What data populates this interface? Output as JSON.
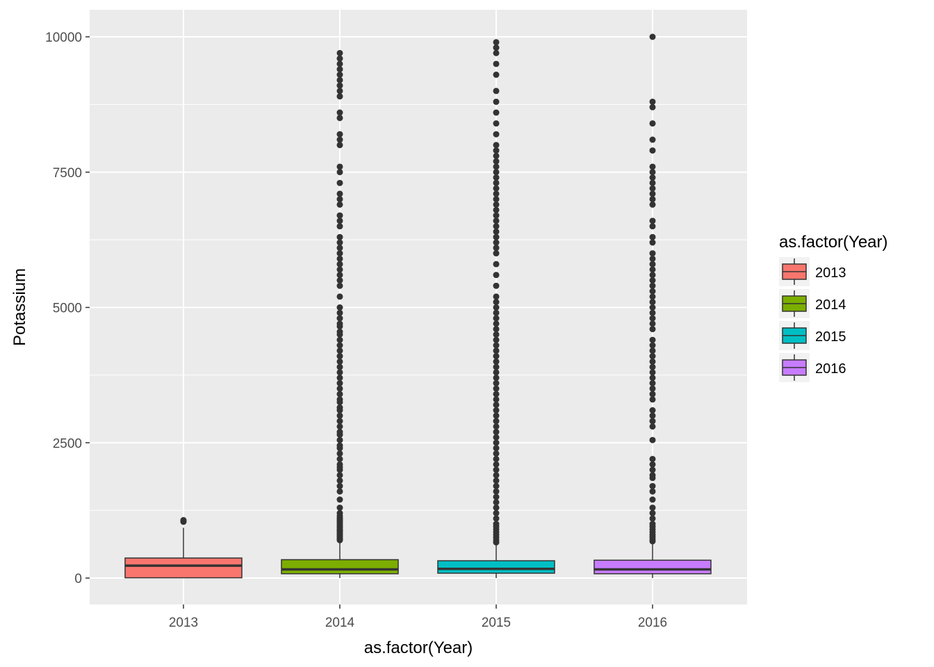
{
  "chart_data": {
    "type": "box",
    "xlabel": "as.factor(Year)",
    "ylabel": "Potassium",
    "categories": [
      "2013",
      "2014",
      "2015",
      "2016"
    ],
    "y_ticks": [
      0,
      2500,
      5000,
      7500,
      10000
    ],
    "y_tick_labels": [
      "0",
      "2500",
      "5000",
      "7500",
      "10000"
    ],
    "ylim": [
      -520,
      10520
    ],
    "grid": true,
    "legend": {
      "title": "as.factor(Year)",
      "placement": "right",
      "entries": [
        "2013",
        "2014",
        "2015",
        "2016"
      ]
    },
    "colors": {
      "2013": "#F8766D",
      "2014": "#7CAE00",
      "2015": "#00BFC4",
      "2016": "#C77CFF",
      "panel": "#EBEBEB",
      "grid": "#FFFFFF",
      "outline": "#333333"
    },
    "series": [
      {
        "category": "2013",
        "min": 0,
        "q1": 5,
        "median": 230,
        "q3": 370,
        "max": 930,
        "outliers": [
          1040,
          1050,
          1060,
          1070
        ]
      },
      {
        "category": "2014",
        "min": 0,
        "q1": 80,
        "median": 160,
        "q3": 340,
        "max": 690,
        "outliers": [
          700,
          720,
          740,
          770,
          800,
          830,
          860,
          880,
          900,
          930,
          960,
          990,
          1020,
          1050,
          1080,
          1110,
          1150,
          1200,
          1300,
          1450,
          1600,
          1700,
          1800,
          1900,
          2000,
          2050,
          2100,
          2200,
          2300,
          2400,
          2450,
          2550,
          2650,
          2700,
          2800,
          2900,
          3000,
          3100,
          3150,
          3250,
          3300,
          3400,
          3500,
          3600,
          3700,
          3800,
          3900,
          4000,
          4100,
          4200,
          4300,
          4400,
          4500,
          4550,
          4650,
          4700,
          4800,
          4900,
          5000,
          5200,
          5400,
          5500,
          5600,
          5700,
          5800,
          5900,
          6000,
          6100,
          6200,
          6300,
          6500,
          6600,
          6700,
          6900,
          7000,
          7100,
          7300,
          7500,
          7600,
          8000,
          8100,
          8200,
          8500,
          8600,
          8900,
          9000,
          9100,
          9200,
          9300,
          9400,
          9500,
          9600,
          9700
        ]
      },
      {
        "category": "2015",
        "min": 0,
        "q1": 90,
        "median": 170,
        "q3": 320,
        "max": 650,
        "outliers": [
          660,
          700,
          750,
          800,
          850,
          900,
          950,
          1000,
          1100,
          1200,
          1300,
          1400,
          1500,
          1600,
          1700,
          1800,
          1900,
          2000,
          2100,
          2200,
          2300,
          2400,
          2500,
          2600,
          2700,
          2800,
          2900,
          3000,
          3100,
          3200,
          3300,
          3400,
          3500,
          3600,
          3700,
          3800,
          3900,
          4000,
          4100,
          4200,
          4300,
          4400,
          4500,
          4600,
          4700,
          4800,
          4900,
          5000,
          5100,
          5200,
          5400,
          5600,
          5800,
          6000,
          6100,
          6200,
          6300,
          6400,
          6500,
          6600,
          6700,
          6800,
          6900,
          7000,
          7100,
          7200,
          7300,
          7400,
          7500,
          7600,
          7700,
          7800,
          7900,
          8000,
          8200,
          8400,
          8600,
          8800,
          9000,
          9300,
          9500,
          9700,
          9800,
          9900
        ]
      },
      {
        "category": "2016",
        "min": 0,
        "q1": 80,
        "median": 160,
        "q3": 330,
        "max": 670,
        "outliers": [
          680,
          720,
          760,
          800,
          850,
          900,
          950,
          1000,
          1100,
          1200,
          1300,
          1450,
          1600,
          1700,
          1850,
          1900,
          2000,
          2100,
          2200,
          2550,
          2800,
          2900,
          3000,
          3100,
          3300,
          3400,
          3500,
          3600,
          3700,
          3800,
          3900,
          4000,
          4100,
          4200,
          4300,
          4400,
          4600,
          4700,
          4800,
          4900,
          5000,
          5100,
          5200,
          5300,
          5400,
          5500,
          5600,
          5700,
          5800,
          5900,
          6000,
          6200,
          6300,
          6500,
          6600,
          6900,
          7000,
          7100,
          7200,
          7300,
          7400,
          7500,
          7600,
          7900,
          8100,
          8400,
          8700,
          8800,
          10000
        ]
      }
    ]
  }
}
